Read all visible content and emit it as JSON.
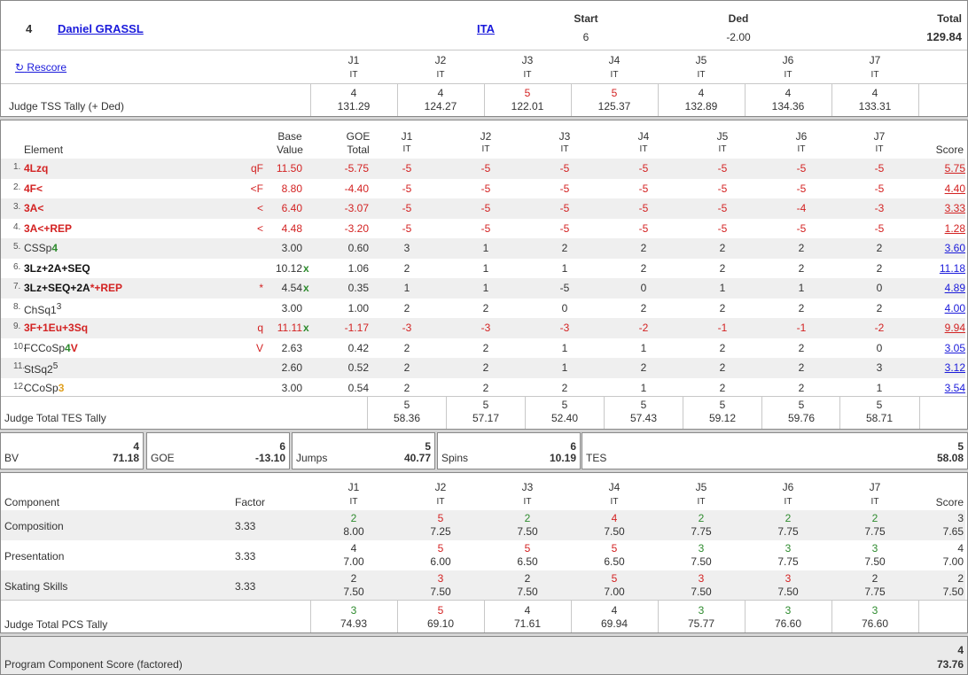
{
  "header": {
    "number": "4",
    "name": "Daniel GRASSL",
    "nation": "ITA",
    "start_label": "Start",
    "start_value": "6",
    "ded_label": "Ded",
    "ded_value": "-2.00",
    "total_label": "Total",
    "total_value": "129.84",
    "rescore_label": "Rescore",
    "tss_label": "Judge TSS Tally (+ Ded)",
    "judges": [
      {
        "label": "J1",
        "nat": "IT",
        "count": "4",
        "tally": "131.29",
        "color": "normal"
      },
      {
        "label": "J2",
        "nat": "IT",
        "count": "4",
        "tally": "124.27",
        "color": "normal"
      },
      {
        "label": "J3",
        "nat": "IT",
        "count": "5",
        "tally": "122.01",
        "color": "red"
      },
      {
        "label": "J4",
        "nat": "IT",
        "count": "5",
        "tally": "125.37",
        "color": "red"
      },
      {
        "label": "J5",
        "nat": "IT",
        "count": "4",
        "tally": "132.89",
        "color": "normal"
      },
      {
        "label": "J6",
        "nat": "IT",
        "count": "4",
        "tally": "134.36",
        "color": "normal"
      },
      {
        "label": "J7",
        "nat": "IT",
        "count": "4",
        "tally": "133.31",
        "color": "normal"
      }
    ]
  },
  "elements": {
    "col_element": "Element",
    "col_base_1": "Base",
    "col_base_2": "Value",
    "col_goe_1": "GOE",
    "col_goe_2": "Total",
    "col_score": "Score",
    "judge_labels": [
      "J1",
      "J2",
      "J3",
      "J4",
      "J5",
      "J6",
      "J7"
    ],
    "judge_nat": "IT",
    "rows": [
      {
        "num": "1.",
        "name": "4Lzq",
        "name_color": "red",
        "info": "qF",
        "bv": "11.50",
        "bv_color": "red",
        "x": "",
        "goe": "-5.75",
        "goe_color": "red",
        "j": [
          "-5",
          "-5",
          "-5",
          "-5",
          "-5",
          "-5",
          "-5"
        ],
        "jc": [
          "r",
          "r",
          "r",
          "r",
          "r",
          "r",
          "r"
        ],
        "score": "5.75",
        "score_color": "red"
      },
      {
        "num": "2.",
        "name": "4F<",
        "name_color": "red",
        "info": "<F",
        "bv": "8.80",
        "bv_color": "red",
        "x": "",
        "goe": "-4.40",
        "goe_color": "red",
        "j": [
          "-5",
          "-5",
          "-5",
          "-5",
          "-5",
          "-5",
          "-5"
        ],
        "jc": [
          "r",
          "r",
          "r",
          "r",
          "r",
          "r",
          "r"
        ],
        "score": "4.40",
        "score_color": "red"
      },
      {
        "num": "3.",
        "name": "3A<",
        "name_color": "red",
        "info": "<",
        "bv": "6.40",
        "bv_color": "red",
        "x": "",
        "goe": "-3.07",
        "goe_color": "red",
        "j": [
          "-5",
          "-5",
          "-5",
          "-5",
          "-5",
          "-4",
          "-3"
        ],
        "jc": [
          "r",
          "r",
          "r",
          "r",
          "r",
          "r",
          "r"
        ],
        "score": "3.33",
        "score_color": "red"
      },
      {
        "num": "4.",
        "name": "3A<+REP",
        "name_color": "red",
        "info": "<",
        "bv": "4.48",
        "bv_color": "red",
        "x": "",
        "goe": "-3.20",
        "goe_color": "red",
        "j": [
          "-5",
          "-5",
          "-5",
          "-5",
          "-5",
          "-5",
          "-5"
        ],
        "jc": [
          "r",
          "r",
          "r",
          "r",
          "r",
          "r",
          "r"
        ],
        "score": "1.28",
        "score_color": "red"
      },
      {
        "num": "5.",
        "name": "CSSp4",
        "name_color": "mixed",
        "name_a": "CSSp",
        "name_b": "4",
        "info": "",
        "bv": "3.00",
        "bv_color": "normal",
        "x": "",
        "goe": "0.60",
        "goe_color": "normal",
        "j": [
          "3",
          "1",
          "2",
          "2",
          "2",
          "2",
          "2"
        ],
        "jc": [
          "n",
          "n",
          "n",
          "n",
          "n",
          "n",
          "n"
        ],
        "score": "3.60",
        "score_color": "blue"
      },
      {
        "num": "6.",
        "name": "3Lz+2A+SEQ",
        "name_color": "black",
        "info": "",
        "bv": "10.12",
        "bv_color": "normal",
        "x": "x",
        "goe": "1.06",
        "goe_color": "normal",
        "j": [
          "2",
          "1",
          "1",
          "2",
          "2",
          "2",
          "2"
        ],
        "jc": [
          "n",
          "n",
          "n",
          "n",
          "n",
          "n",
          "n"
        ],
        "score": "11.18",
        "score_color": "blue"
      },
      {
        "num": "7.",
        "name": "3Lz+SEQ+2A*+REP",
        "name_color": "mixed2",
        "name_a": "3Lz+SEQ+2A",
        "name_b": "*+REP",
        "info": "*",
        "bv": "4.54",
        "bv_color": "normal",
        "x": "x",
        "goe": "0.35",
        "goe_color": "normal",
        "j": [
          "1",
          "1",
          "-5",
          "0",
          "1",
          "1",
          "0"
        ],
        "jc": [
          "n",
          "n",
          "n",
          "n",
          "n",
          "n",
          "n"
        ],
        "score": "4.89",
        "score_color": "blue"
      },
      {
        "num": "8.",
        "name": "ChSq1",
        "name_color": "sup",
        "name_a": "ChSq1",
        "name_b": "3",
        "info": "",
        "bv": "3.00",
        "bv_color": "normal",
        "x": "",
        "goe": "1.00",
        "goe_color": "normal",
        "j": [
          "2",
          "2",
          "0",
          "2",
          "2",
          "2",
          "2"
        ],
        "jc": [
          "n",
          "n",
          "n",
          "n",
          "n",
          "n",
          "n"
        ],
        "score": "4.00",
        "score_color": "blue"
      },
      {
        "num": "9.",
        "name": "3F+1Eu+3Sq",
        "name_color": "red",
        "info": "q",
        "bv": "11.11",
        "bv_color": "red",
        "x": "x",
        "goe": "-1.17",
        "goe_color": "red",
        "j": [
          "-3",
          "-3",
          "-3",
          "-2",
          "-1",
          "-1",
          "-2"
        ],
        "jc": [
          "r",
          "r",
          "r",
          "r",
          "r",
          "r",
          "r"
        ],
        "score": "9.94",
        "score_color": "red"
      },
      {
        "num": "10.",
        "name": "FCCoSp4V",
        "name_color": "mixed3",
        "name_a": "FCCoSp",
        "name_b": "4",
        "name_c": "V",
        "info": "V",
        "bv": "2.63",
        "bv_color": "normal",
        "x": "",
        "goe": "0.42",
        "goe_color": "normal",
        "j": [
          "2",
          "2",
          "1",
          "1",
          "2",
          "2",
          "0"
        ],
        "jc": [
          "n",
          "n",
          "n",
          "n",
          "n",
          "n",
          "n"
        ],
        "score": "3.05",
        "score_color": "blue"
      },
      {
        "num": "11.",
        "name": "StSq2",
        "name_color": "sup",
        "name_a": "StSq2",
        "name_b": "5",
        "info": "",
        "bv": "2.60",
        "bv_color": "normal",
        "x": "",
        "goe": "0.52",
        "goe_color": "normal",
        "j": [
          "2",
          "2",
          "1",
          "2",
          "2",
          "2",
          "3"
        ],
        "jc": [
          "n",
          "n",
          "n",
          "n",
          "n",
          "n",
          "n"
        ],
        "score": "3.12",
        "score_color": "blue"
      },
      {
        "num": "12.",
        "name": "CCoSp3",
        "name_color": "mixed4",
        "name_a": "CCoSp",
        "name_b": "3",
        "info": "",
        "bv": "3.00",
        "bv_color": "normal",
        "x": "",
        "goe": "0.54",
        "goe_color": "normal",
        "j": [
          "2",
          "2",
          "2",
          "1",
          "2",
          "2",
          "1"
        ],
        "jc": [
          "n",
          "n",
          "n",
          "n",
          "n",
          "n",
          "n"
        ],
        "score": "3.54",
        "score_color": "blue"
      }
    ],
    "tes_tally_label": "Judge Total TES Tally",
    "tes_tally": [
      {
        "count": "5",
        "value": "58.36"
      },
      {
        "count": "5",
        "value": "57.17"
      },
      {
        "count": "5",
        "value": "52.40"
      },
      {
        "count": "5",
        "value": "57.43"
      },
      {
        "count": "5",
        "value": "59.12"
      },
      {
        "count": "5",
        "value": "59.76"
      },
      {
        "count": "5",
        "value": "58.71"
      }
    ]
  },
  "summary": [
    {
      "label": "BV",
      "count": "4",
      "value": "71.18"
    },
    {
      "label": "GOE",
      "count": "6",
      "value": "-13.10"
    },
    {
      "label": "Jumps",
      "count": "5",
      "value": "40.77"
    },
    {
      "label": "Spins",
      "count": "6",
      "value": "10.19"
    },
    {
      "label": "TES",
      "count": "5",
      "value": "58.08"
    }
  ],
  "pcs": {
    "col_component": "Component",
    "col_factor": "Factor",
    "col_score": "Score",
    "rows": [
      {
        "name": "Composition",
        "factor": "3.33",
        "j": [
          [
            "2",
            "8.00",
            "g"
          ],
          [
            "5",
            "7.25",
            "r"
          ],
          [
            "2",
            "7.50",
            "g"
          ],
          [
            "4",
            "7.50",
            "r"
          ],
          [
            "2",
            "7.75",
            "g"
          ],
          [
            "2",
            "7.75",
            "g"
          ],
          [
            "2",
            "7.75",
            "g"
          ]
        ],
        "score_count": "3",
        "score": "7.65"
      },
      {
        "name": "Presentation",
        "factor": "3.33",
        "j": [
          [
            "4",
            "7.00",
            "n"
          ],
          [
            "5",
            "6.00",
            "r"
          ],
          [
            "5",
            "6.50",
            "r"
          ],
          [
            "5",
            "6.50",
            "r"
          ],
          [
            "3",
            "7.50",
            "g"
          ],
          [
            "3",
            "7.75",
            "g"
          ],
          [
            "3",
            "7.50",
            "g"
          ]
        ],
        "score_count": "4",
        "score": "7.00"
      },
      {
        "name": "Skating Skills",
        "factor": "3.33",
        "j": [
          [
            "2",
            "7.50",
            "n"
          ],
          [
            "3",
            "7.50",
            "r"
          ],
          [
            "2",
            "7.50",
            "n"
          ],
          [
            "5",
            "7.00",
            "r"
          ],
          [
            "3",
            "7.50",
            "r"
          ],
          [
            "3",
            "7.50",
            "r"
          ],
          [
            "2",
            "7.75",
            "n"
          ]
        ],
        "score_count": "2",
        "score": "7.50"
      }
    ],
    "tally_label": "Judge Total PCS Tally",
    "tally": [
      [
        "3",
        "74.93",
        "g"
      ],
      [
        "5",
        "69.10",
        "r"
      ],
      [
        "4",
        "71.61",
        "n"
      ],
      [
        "4",
        "69.94",
        "n"
      ],
      [
        "3",
        "75.77",
        "g"
      ],
      [
        "3",
        "76.60",
        "g"
      ],
      [
        "3",
        "76.60",
        "g"
      ]
    ]
  },
  "footer": {
    "label": "Program Component Score (factored)",
    "count": "4",
    "value": "73.76"
  },
  "colors": {
    "red": "#d32222",
    "green": "#2e8b2e",
    "link": "#1a1adb",
    "shade": "#efefef"
  }
}
